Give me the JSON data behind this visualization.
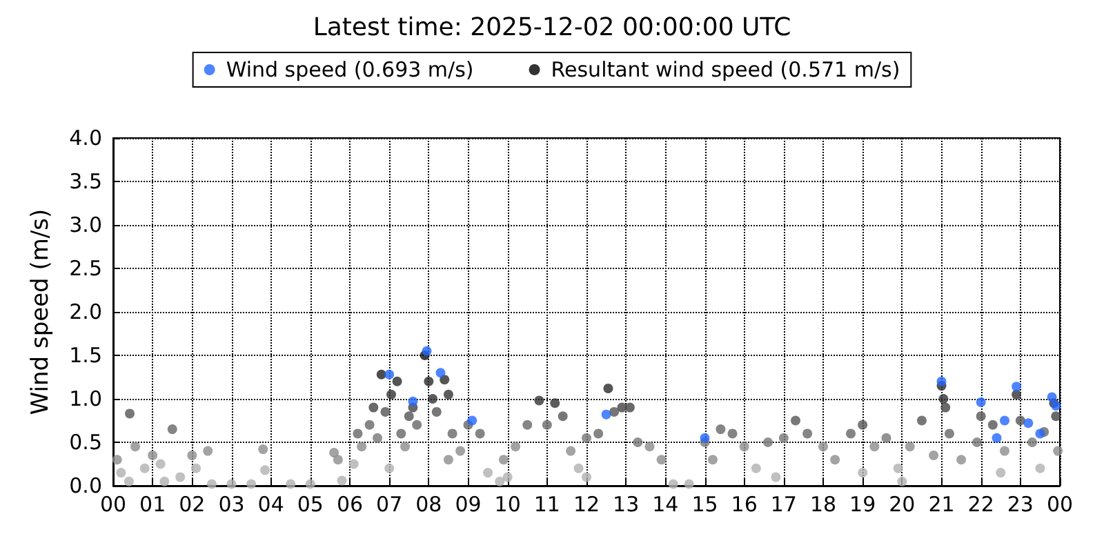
{
  "chart_data": {
    "type": "scatter",
    "title": "Latest time: 2025-12-02 00:00:00 UTC",
    "ylabel": "Wind speed (m/s)",
    "xlim": [
      0,
      24
    ],
    "ylim": [
      0,
      4
    ],
    "xticks": [
      {
        "value": 0,
        "label": "00"
      },
      {
        "value": 1,
        "label": "01"
      },
      {
        "value": 2,
        "label": "02"
      },
      {
        "value": 3,
        "label": "03"
      },
      {
        "value": 4,
        "label": "04"
      },
      {
        "value": 5,
        "label": "05"
      },
      {
        "value": 6,
        "label": "06"
      },
      {
        "value": 7,
        "label": "07"
      },
      {
        "value": 8,
        "label": "08"
      },
      {
        "value": 9,
        "label": "09"
      },
      {
        "value": 10,
        "label": "10"
      },
      {
        "value": 11,
        "label": "11"
      },
      {
        "value": 12,
        "label": "12"
      },
      {
        "value": 13,
        "label": "13"
      },
      {
        "value": 14,
        "label": "14"
      },
      {
        "value": 15,
        "label": "15"
      },
      {
        "value": 16,
        "label": "16"
      },
      {
        "value": 17,
        "label": "17"
      },
      {
        "value": 18,
        "label": "18"
      },
      {
        "value": 19,
        "label": "19"
      },
      {
        "value": 20,
        "label": "20"
      },
      {
        "value": 21,
        "label": "21"
      },
      {
        "value": 22,
        "label": "22"
      },
      {
        "value": 23,
        "label": "23"
      },
      {
        "value": 24,
        "label": "00"
      }
    ],
    "yticks": [
      {
        "value": 0,
        "label": "0.0"
      },
      {
        "value": 0.5,
        "label": "0.5"
      },
      {
        "value": 1,
        "label": "1.0"
      },
      {
        "value": 1.5,
        "label": "1.5"
      },
      {
        "value": 2,
        "label": "2.0"
      },
      {
        "value": 2.5,
        "label": "2.5"
      },
      {
        "value": 3,
        "label": "3.0"
      },
      {
        "value": 3.5,
        "label": "3.5"
      },
      {
        "value": 4,
        "label": "4.0"
      }
    ],
    "grid": true,
    "legend": "top",
    "marker": "circle",
    "series": [
      {
        "name": "Wind speed (0.693 m/s)",
        "color": "#2266ff",
        "x": [
          7.0,
          7.6,
          7.95,
          8.3,
          9.1,
          12.5,
          15.0,
          21.0,
          22.0,
          22.9,
          22.6,
          23.2,
          23.8,
          23.9,
          23.5,
          22.4
        ],
        "values": [
          1.28,
          0.97,
          1.55,
          1.3,
          0.75,
          0.82,
          0.55,
          1.2,
          0.96,
          1.14,
          0.75,
          0.72,
          1.02,
          0.92,
          0.6,
          0.55
        ],
        "colors": [
          "#2266ff",
          "#2266ff",
          "#2266ff",
          "#2266ff",
          "#2266ff",
          "#2266ff",
          "#2266ff",
          "#2266ff",
          "#2266ff",
          "#2266ff",
          "#2266ff",
          "#2266ff",
          "#2266ff",
          "#2266ff",
          "#2266ff",
          "#2266ff"
        ]
      },
      {
        "name": "Resultant wind speed (0.571 m/s)",
        "color": "#000000",
        "x": [
          0.1,
          0.2,
          0.4,
          0.42,
          0.56,
          0.8,
          1.0,
          1.2,
          1.5,
          1.7,
          2.0,
          2.1,
          2.4,
          2.5,
          3.0,
          3.8,
          3.85,
          4.5,
          5.0,
          5.6,
          5.7,
          5.8,
          6.1,
          6.2,
          6.3,
          6.5,
          6.6,
          6.7,
          6.8,
          6.9,
          7.05,
          7.2,
          7.3,
          7.4,
          7.5,
          7.6,
          7.7,
          7.9,
          8.0,
          8.1,
          8.2,
          8.4,
          8.5,
          8.6,
          8.8,
          9.0,
          9.3,
          9.5,
          9.8,
          10.2,
          10.5,
          10.8,
          11.0,
          11.2,
          11.4,
          11.6,
          11.8,
          12.0,
          12.3,
          12.55,
          12.7,
          12.9,
          13.1,
          13.3,
          13.6,
          13.9,
          14.2,
          14.6,
          15.0,
          15.2,
          15.4,
          15.7,
          16.0,
          16.3,
          16.6,
          17.0,
          17.3,
          17.6,
          18.0,
          18.3,
          18.7,
          19.0,
          19.3,
          19.6,
          19.9,
          20.2,
          20.5,
          20.8,
          21.0,
          21.05,
          21.1,
          21.2,
          21.5,
          21.9,
          22.0,
          22.3,
          22.6,
          22.9,
          23.0,
          23.3,
          23.6,
          23.85,
          23.9,
          23.95,
          1.3,
          3.5,
          10.0,
          12.0,
          16.8,
          19.0,
          20.0,
          22.5,
          23.5,
          8.5,
          7.0,
          9.9
        ],
        "values": [
          0.3,
          0.15,
          0.05,
          0.83,
          0.45,
          0.2,
          0.35,
          0.25,
          0.65,
          0.1,
          0.35,
          0.2,
          0.4,
          0.02,
          0.02,
          0.42,
          0.18,
          0.02,
          0.02,
          0.38,
          0.3,
          0.06,
          0.25,
          0.6,
          0.45,
          0.7,
          0.9,
          0.55,
          1.28,
          0.85,
          1.05,
          1.2,
          0.6,
          0.45,
          0.8,
          0.9,
          0.7,
          1.5,
          1.2,
          1.0,
          0.85,
          1.22,
          1.05,
          0.6,
          0.4,
          0.7,
          0.6,
          0.15,
          0.05,
          0.45,
          0.7,
          0.98,
          0.7,
          0.95,
          0.8,
          0.4,
          0.2,
          0.55,
          0.6,
          1.12,
          0.85,
          0.9,
          0.9,
          0.5,
          0.45,
          0.3,
          0.02,
          0.02,
          0.5,
          0.3,
          0.65,
          0.6,
          0.45,
          0.2,
          0.5,
          0.55,
          0.75,
          0.6,
          0.45,
          0.3,
          0.6,
          0.7,
          0.45,
          0.55,
          0.2,
          0.45,
          0.75,
          0.35,
          1.15,
          1.0,
          0.9,
          0.6,
          0.3,
          0.5,
          0.8,
          0.7,
          0.4,
          1.05,
          0.75,
          0.5,
          0.62,
          0.95,
          0.8,
          0.4,
          0.05,
          0.02,
          0.1,
          0.1,
          0.1,
          0.15,
          0.05,
          0.15,
          0.2,
          0.3,
          0.2,
          0.3
        ],
        "colors": [
          "#8c8c8c",
          "#b0b0b0",
          "#b0b0b0",
          "#555555",
          "#8c8c8c",
          "#b0b0b0",
          "#8c8c8c",
          "#b0b0b0",
          "#666666",
          "#b0b0b0",
          "#8c8c8c",
          "#b0b0b0",
          "#8c8c8c",
          "#b0b0b0",
          "#b0b0b0",
          "#8c8c8c",
          "#b0b0b0",
          "#b0b0b0",
          "#b0b0b0",
          "#8c8c8c",
          "#8c8c8c",
          "#b0b0b0",
          "#b0b0b0",
          "#666666",
          "#8c8c8c",
          "#666666",
          "#444444",
          "#777777",
          "#222222",
          "#555555",
          "#333333",
          "#2a2a2a",
          "#666666",
          "#8c8c8c",
          "#555555",
          "#444444",
          "#666666",
          "#111111",
          "#2a2a2a",
          "#333333",
          "#555555",
          "#2a2a2a",
          "#333333",
          "#666666",
          "#8c8c8c",
          "#666666",
          "#666666",
          "#b0b0b0",
          "#b0b0b0",
          "#8c8c8c",
          "#666666",
          "#333333",
          "#666666",
          "#333333",
          "#555555",
          "#8c8c8c",
          "#b0b0b0",
          "#777777",
          "#666666",
          "#2a2a2a",
          "#555555",
          "#444444",
          "#444444",
          "#777777",
          "#8c8c8c",
          "#8c8c8c",
          "#b0b0b0",
          "#b0b0b0",
          "#777777",
          "#8c8c8c",
          "#666666",
          "#666666",
          "#8c8c8c",
          "#b0b0b0",
          "#777777",
          "#777777",
          "#555555",
          "#666666",
          "#8c8c8c",
          "#8c8c8c",
          "#666666",
          "#555555",
          "#8c8c8c",
          "#777777",
          "#b0b0b0",
          "#8c8c8c",
          "#555555",
          "#8c8c8c",
          "#2a2a2a",
          "#333333",
          "#444444",
          "#666666",
          "#8c8c8c",
          "#777777",
          "#555555",
          "#555555",
          "#8c8c8c",
          "#333333",
          "#555555",
          "#777777",
          "#666666",
          "#333333",
          "#444444",
          "#8c8c8c",
          "#b0b0b0",
          "#b0b0b0",
          "#b0b0b0",
          "#b0b0b0",
          "#b0b0b0",
          "#b0b0b0",
          "#b0b0b0",
          "#b0b0b0",
          "#b0b0b0",
          "#8c8c8c",
          "#b0b0b0",
          "#8c8c8c"
        ]
      }
    ]
  }
}
